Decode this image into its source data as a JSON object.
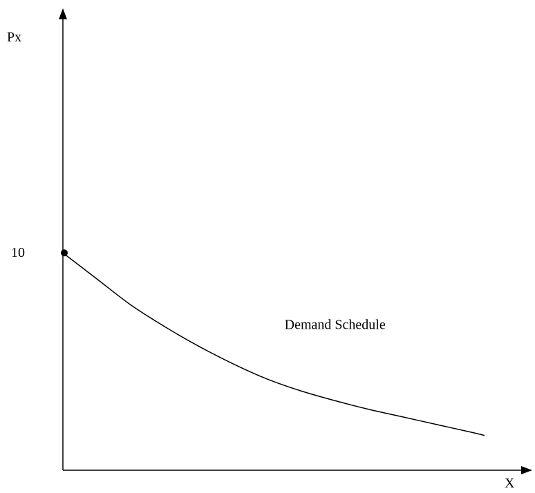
{
  "chart_data": {
    "type": "line",
    "title": "",
    "xlabel": "X",
    "ylabel": "Px",
    "y_ticks": [
      {
        "value": 10,
        "label": "10"
      }
    ],
    "series": [
      {
        "name": "Demand Schedule",
        "x": [
          0,
          5,
          10,
          15,
          20,
          25,
          30,
          35,
          40,
          45,
          50,
          55,
          60,
          62
        ],
        "y": [
          10,
          8.8,
          7.6,
          6.6,
          5.7,
          4.9,
          4.2,
          3.65,
          3.2,
          2.8,
          2.45,
          2.1,
          1.75,
          1.6
        ]
      }
    ],
    "annotations": [
      {
        "text": "Demand Schedule",
        "x": 33,
        "y": 6.5
      }
    ],
    "highlight_point": {
      "x": 0,
      "y": 10
    },
    "xlim": [
      0,
      68
    ],
    "ylim": [
      0,
      21
    ],
    "grid": false,
    "legend": "none",
    "colors": {
      "axis": "#000000",
      "curve": "#000000",
      "background": "#ffffff"
    }
  }
}
